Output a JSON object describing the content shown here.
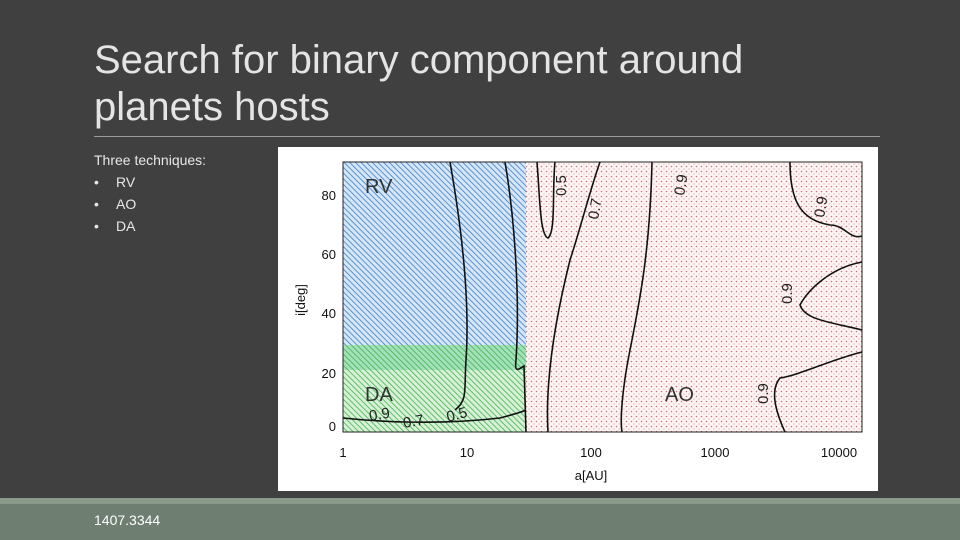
{
  "slide": {
    "title_lines": [
      "Search for binary component around",
      "planets hosts"
    ],
    "intro": "Three techniques:",
    "bullets": [
      "RV",
      "AO",
      "DA"
    ],
    "footer": "1407.3344"
  },
  "figure": {
    "xlabel": "a[AU]",
    "ylabel": "i[deg]",
    "xticks": [
      "1",
      "10",
      "100",
      "1000",
      "10000"
    ],
    "yticks": [
      "0",
      "20",
      "40",
      "60",
      "80"
    ],
    "regions": [
      "RV",
      "DA",
      "AO"
    ],
    "contour_labels": [
      "0.5",
      "0.7",
      "0.9",
      "0.9",
      "0.9",
      "0.9",
      "0.9",
      "0.7",
      "0.5"
    ]
  }
}
